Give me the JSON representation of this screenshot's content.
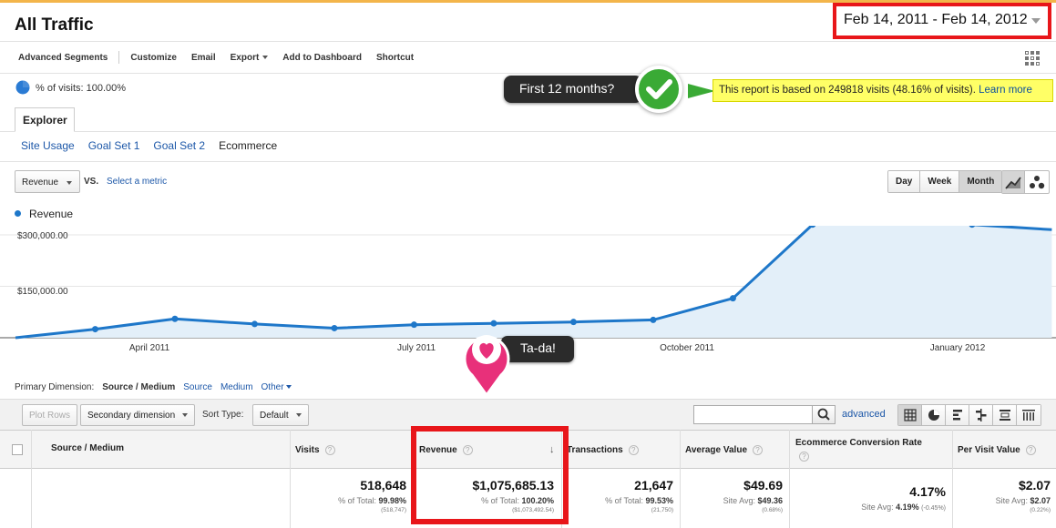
{
  "header": {
    "title": "All Traffic",
    "date_range": "Feb 14, 2011 - Feb 14, 2012"
  },
  "toolbar": {
    "items": [
      "Advanced Segments",
      "Customize",
      "Email",
      "Export",
      "Add to Dashboard",
      "Shortcut"
    ]
  },
  "segment": {
    "text": "% of visits: 100.00%"
  },
  "callout": {
    "text": "First 12 months?"
  },
  "notice": {
    "text": "This report is based on 249818 visits (48.16% of visits).",
    "link": "Learn more"
  },
  "explorer": {
    "tab": "Explorer",
    "subtabs": [
      "Site Usage",
      "Goal Set 1",
      "Goal Set 2",
      "Ecommerce"
    ]
  },
  "chart_controls": {
    "metric": "Revenue",
    "vs": "VS.",
    "select_metric": "Select a metric",
    "periods": [
      "Day",
      "Week",
      "Month"
    ],
    "active_period": "Month"
  },
  "chart_data": {
    "type": "area",
    "series": [
      {
        "name": "Revenue",
        "values": [
          0,
          25000,
          55000,
          40000,
          28000,
          38000,
          42000,
          46000,
          52000,
          115000,
          330000,
          385000,
          330000,
          315000
        ]
      }
    ],
    "y_ticks": [
      "$300,000.00",
      "$150,000.00"
    ],
    "x_tick_labels": [
      "April 2011",
      "July 2011",
      "October 2011",
      "January 2012"
    ],
    "color": "#1e77c9",
    "fill": "#e3eff9"
  },
  "tada": {
    "text": "Ta-da!"
  },
  "dimension": {
    "label": "Primary Dimension:",
    "current": "Source / Medium",
    "options": [
      "Source",
      "Medium",
      "Other"
    ]
  },
  "table_controls": {
    "plot_rows": "Plot Rows",
    "secondary": "Secondary dimension",
    "sort_type_label": "Sort Type:",
    "sort_type": "Default",
    "advanced": "advanced"
  },
  "table": {
    "columns": [
      "Source / Medium",
      "Visits",
      "Revenue",
      "Transactions",
      "Average Value",
      "Ecommerce Conversion Rate",
      "Per Visit Value"
    ],
    "totals": [
      {
        "value": "518,648",
        "label": "% of Total:",
        "pct": "99.98%",
        "base": "(518,747)"
      },
      {
        "value": "$1,075,685.13",
        "label": "% of Total:",
        "pct": "100.20%",
        "base": "($1,073,492.54)"
      },
      {
        "value": "21,647",
        "label": "% of Total:",
        "pct": "99.53%",
        "base": "(21,750)"
      },
      {
        "value": "$49.69",
        "label": "Site Avg:",
        "pct": "$49.36",
        "base": "(0.68%)"
      },
      {
        "value": "4.17%",
        "label": "Site Avg:",
        "pct": "4.19%",
        "extra": "(-0.45%)"
      },
      {
        "value": "$2.07",
        "label": "Site Avg:",
        "pct": "$2.07",
        "base": "(0.22%)"
      }
    ]
  }
}
